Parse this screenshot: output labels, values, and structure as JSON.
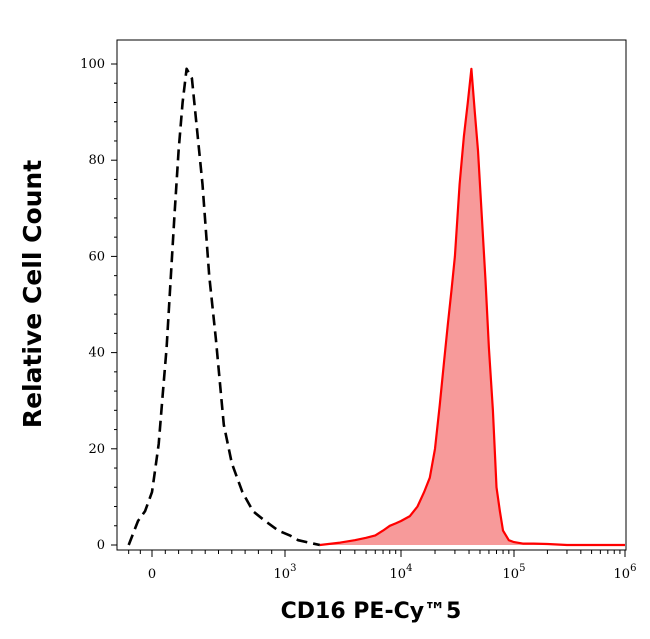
{
  "chart_data": {
    "type": "area",
    "xlabel": "CD16 PE-Cy™5",
    "ylabel": "Relative Cell Count",
    "x_scale": "biexponential",
    "x_ticks": [
      {
        "value": 0,
        "base": "0",
        "exp": ""
      },
      {
        "value": 1000,
        "base": "10",
        "exp": "3"
      },
      {
        "value": 10000,
        "base": "10",
        "exp": "4"
      },
      {
        "value": 100000,
        "base": "10",
        "exp": "5"
      },
      {
        "value": 1000000,
        "base": "10",
        "exp": "6"
      }
    ],
    "y_ticks": [
      0,
      20,
      40,
      60,
      80,
      100
    ],
    "ylim": [
      0,
      100
    ],
    "grid": false,
    "colors": {
      "stained_line": "#ff0000",
      "stained_fill": "#f79a9a",
      "control_line": "#000000"
    },
    "series": [
      {
        "style": "dashed-outline",
        "x": [
          -200,
          -120,
          -60,
          0,
          20,
          50,
          80,
          110,
          140,
          170,
          200,
          230,
          260,
          300,
          340,
          380,
          430,
          480,
          540,
          600,
          680,
          760,
          850,
          950,
          1100,
          1300,
          1600,
          2000
        ],
        "y": [
          0,
          5,
          7,
          11,
          15,
          21,
          31,
          41,
          55,
          69,
          82,
          92,
          99,
          97,
          86,
          75,
          56,
          43,
          25,
          17,
          11,
          7,
          5,
          3,
          2,
          1,
          0.5,
          0
        ]
      },
      {
        "style": "filled",
        "x": [
          2000,
          3000,
          4000,
          5000,
          6000,
          7000,
          8000,
          9000,
          10000,
          12000,
          14000,
          16000,
          18000,
          20000,
          22000,
          24000,
          26000,
          28000,
          30000,
          33000,
          36000,
          39000,
          42000,
          45000,
          48000,
          52000,
          56000,
          60000,
          65000,
          70000,
          75000,
          80000,
          90000,
          100000,
          120000,
          150000,
          200000,
          300000,
          600000,
          1000000
        ],
        "y": [
          0,
          0.5,
          1,
          1.5,
          2,
          3,
          4,
          4.5,
          5,
          6,
          8,
          11,
          14,
          20,
          29,
          38,
          46,
          53,
          60,
          75,
          85,
          92,
          99,
          90,
          82,
          68,
          55,
          41,
          28,
          12,
          7,
          3,
          1,
          0.6,
          0.3,
          0.3,
          0.2,
          0,
          0,
          0
        ]
      }
    ]
  }
}
